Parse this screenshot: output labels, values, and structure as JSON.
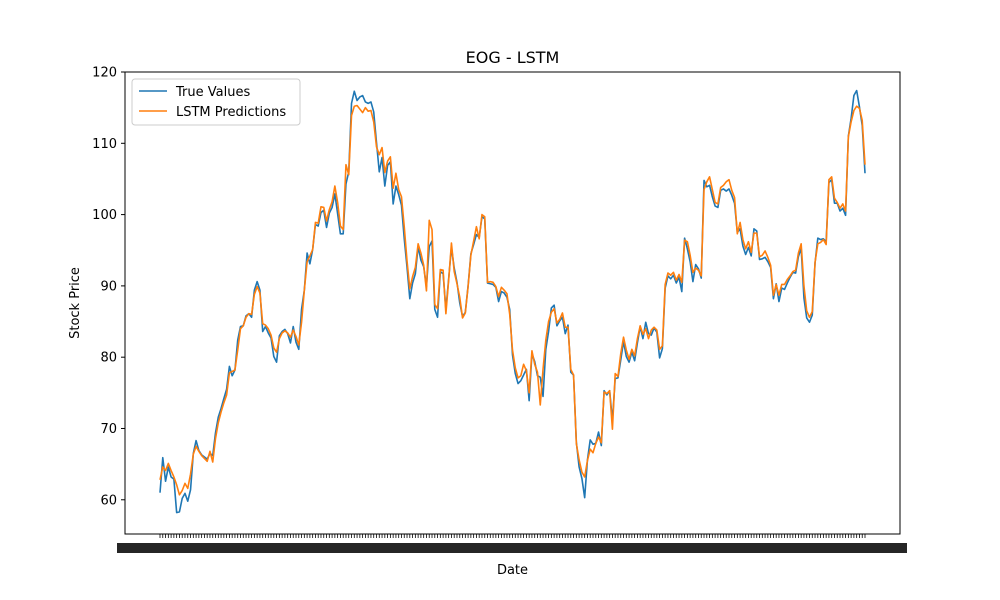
{
  "chart_data": {
    "type": "line",
    "title": "EOG - LSTM",
    "xlabel": "Date",
    "ylabel": "Stock Price",
    "ylim": [
      55.2,
      120
    ],
    "yticks": [
      60,
      70,
      80,
      90,
      100,
      110,
      120
    ],
    "grid": false,
    "legend_position": "top-left",
    "colors": {
      "true_values": "#1f77b4",
      "lstm_predictions": "#ff7f0e"
    },
    "series": [
      {
        "name": "True Values",
        "values": [
          61.0,
          65.9,
          62.6,
          64.6,
          63.2,
          62.9,
          58.2,
          58.3,
          60.2,
          60.9,
          59.8,
          61.4,
          66.5,
          68.3,
          66.9,
          66.3,
          66.0,
          65.7,
          66.5,
          66.2,
          69.4,
          71.6,
          72.8,
          74.2,
          75.5,
          78.7,
          77.4,
          78.2,
          82.4,
          84.3,
          84.4,
          85.8,
          86.1,
          85.6,
          89.4,
          90.6,
          89.4,
          83.6,
          84.3,
          83.4,
          82.7,
          80.1,
          79.3,
          83.0,
          83.6,
          83.9,
          83.3,
          82.0,
          84.3,
          82.1,
          81.1,
          86.7,
          89.4,
          94.6,
          93.1,
          95.1,
          98.6,
          98.4,
          100.3,
          100.6,
          98.2,
          100.2,
          101.0,
          102.9,
          100.1,
          97.3,
          97.3,
          104.3,
          106.0,
          115.6,
          117.3,
          116.0,
          116.5,
          116.7,
          115.8,
          115.6,
          115.8,
          114.4,
          110.1,
          106.0,
          108.0,
          104.0,
          106.9,
          107.4,
          101.5,
          104.0,
          102.8,
          101.3,
          96.6,
          92.6,
          88.2,
          90.4,
          91.7,
          95.5,
          93.6,
          92.7,
          89.9,
          95.5,
          96.3,
          86.7,
          85.6,
          92.0,
          91.7,
          86.7,
          91.0,
          95.4,
          92.5,
          90.5,
          87.6,
          85.7,
          86.3,
          90.0,
          94.5,
          95.8,
          97.2,
          96.8,
          99.7,
          99.4,
          90.4,
          90.3,
          90.2,
          89.8,
          87.8,
          89.2,
          89.0,
          88.4,
          86.7,
          80.3,
          77.7,
          76.3,
          76.7,
          77.5,
          78.3,
          73.9,
          80.5,
          79.4,
          77.4,
          77.2,
          74.5,
          81.1,
          83.6,
          86.9,
          87.3,
          84.4,
          85.1,
          85.6,
          83.3,
          84.5,
          77.9,
          77.5,
          68.1,
          64.6,
          63.0,
          60.3,
          65.6,
          68.4,
          67.8,
          67.9,
          69.5,
          67.6,
          75.3,
          74.7,
          75.3,
          71.1,
          77.0,
          77.1,
          79.6,
          82.2,
          80.1,
          79.3,
          80.7,
          79.5,
          82.0,
          84.3,
          82.6,
          84.9,
          83.3,
          83.1,
          84.1,
          83.5,
          79.9,
          81.2,
          89.7,
          91.4,
          91.0,
          91.5,
          90.4,
          91.2,
          89.2,
          96.7,
          95.2,
          93.4,
          90.6,
          93.0,
          92.4,
          91.1,
          104.8,
          103.9,
          104.1,
          102.5,
          101.2,
          101.0,
          103.4,
          103.6,
          103.3,
          103.6,
          102.7,
          101.6,
          97.5,
          98.0,
          95.6,
          94.4,
          95.4,
          94.2,
          98.0,
          97.7,
          93.7,
          93.8,
          94.0,
          93.4,
          92.6,
          88.2,
          90.3,
          87.8,
          89.7,
          89.5,
          90.4,
          91.2,
          91.9,
          91.8,
          94.1,
          95.3,
          88.3,
          85.5,
          84.9,
          85.9,
          93.2,
          96.7,
          96.5,
          96.6,
          96.2,
          104.5,
          104.9,
          101.6,
          101.6,
          100.5,
          100.9,
          99.9,
          111.0,
          113.5,
          116.7,
          117.4,
          115.1,
          112.5,
          105.8
        ]
      },
      {
        "name": "LSTM Predictions",
        "values": [
          62.8,
          64.6,
          64.1,
          65.1,
          64.1,
          63.2,
          62.1,
          60.7,
          61.3,
          62.3,
          61.6,
          63.6,
          66.4,
          67.5,
          66.8,
          66.2,
          65.8,
          65.4,
          66.8,
          65.3,
          68.6,
          70.8,
          72.3,
          73.6,
          74.7,
          77.8,
          78.0,
          78.2,
          81.0,
          84.0,
          84.4,
          85.6,
          86.1,
          86.0,
          88.8,
          89.9,
          89.0,
          84.7,
          84.5,
          84.0,
          83.1,
          81.3,
          80.7,
          82.6,
          83.4,
          83.7,
          83.4,
          82.8,
          83.8,
          82.9,
          81.7,
          84.9,
          89.4,
          93.4,
          94.2,
          95.1,
          98.9,
          98.8,
          101.1,
          101.0,
          99.1,
          100.7,
          101.8,
          104.0,
          101.7,
          98.4,
          97.9,
          107.0,
          105.6,
          113.9,
          115.2,
          115.3,
          114.8,
          114.3,
          115.0,
          114.5,
          114.6,
          113.0,
          109.5,
          108.4,
          109.4,
          105.9,
          107.5,
          108.1,
          103.7,
          105.8,
          103.5,
          102.5,
          98.3,
          93.5,
          89.6,
          91.3,
          92.6,
          95.9,
          94.6,
          92.9,
          89.3,
          99.2,
          97.9,
          87.4,
          86.8,
          92.3,
          92.2,
          86.1,
          90.8,
          96.0,
          92.0,
          90.3,
          88.4,
          85.5,
          86.2,
          89.9,
          94.3,
          96.3,
          98.3,
          96.6,
          100.0,
          99.7,
          90.5,
          90.6,
          90.5,
          89.9,
          88.5,
          89.8,
          89.4,
          88.9,
          86.0,
          81.0,
          78.5,
          77.1,
          77.4,
          79.0,
          78.1,
          75.0,
          80.9,
          79.0,
          77.9,
          73.3,
          78.3,
          82.4,
          85.0,
          86.3,
          86.8,
          84.8,
          85.3,
          86.2,
          84.2,
          84.2,
          78.3,
          77.5,
          67.9,
          65.6,
          63.9,
          63.2,
          65.5,
          67.1,
          66.6,
          67.9,
          68.8,
          68.0,
          75.1,
          74.9,
          75.3,
          69.9,
          77.7,
          77.3,
          80.5,
          82.8,
          81.0,
          79.7,
          81.1,
          80.2,
          82.6,
          84.4,
          83.2,
          84.0,
          82.6,
          83.8,
          84.2,
          83.8,
          81.1,
          81.6,
          90.2,
          91.8,
          91.5,
          91.9,
          90.8,
          91.6,
          90.5,
          96.4,
          96.2,
          94.3,
          91.9,
          92.5,
          92.2,
          91.4,
          103.5,
          104.6,
          105.3,
          103.5,
          101.7,
          101.5,
          103.8,
          104.1,
          104.6,
          104.9,
          103.4,
          102.4,
          97.3,
          98.9,
          96.5,
          95.2,
          96.2,
          94.7,
          97.4,
          97.4,
          94.1,
          94.3,
          94.9,
          94.0,
          92.9,
          88.7,
          90.2,
          88.7,
          90.2,
          90.2,
          90.9,
          91.4,
          92.0,
          92.2,
          94.6,
          95.9,
          90.0,
          86.5,
          85.6,
          86.4,
          93.3,
          95.9,
          96.1,
          96.5,
          95.8,
          104.9,
          105.3,
          102.3,
          101.7,
          100.9,
          101.5,
          100.5,
          110.9,
          113.0,
          114.6,
          115.2,
          114.9,
          113.2,
          107.0
        ]
      }
    ]
  }
}
